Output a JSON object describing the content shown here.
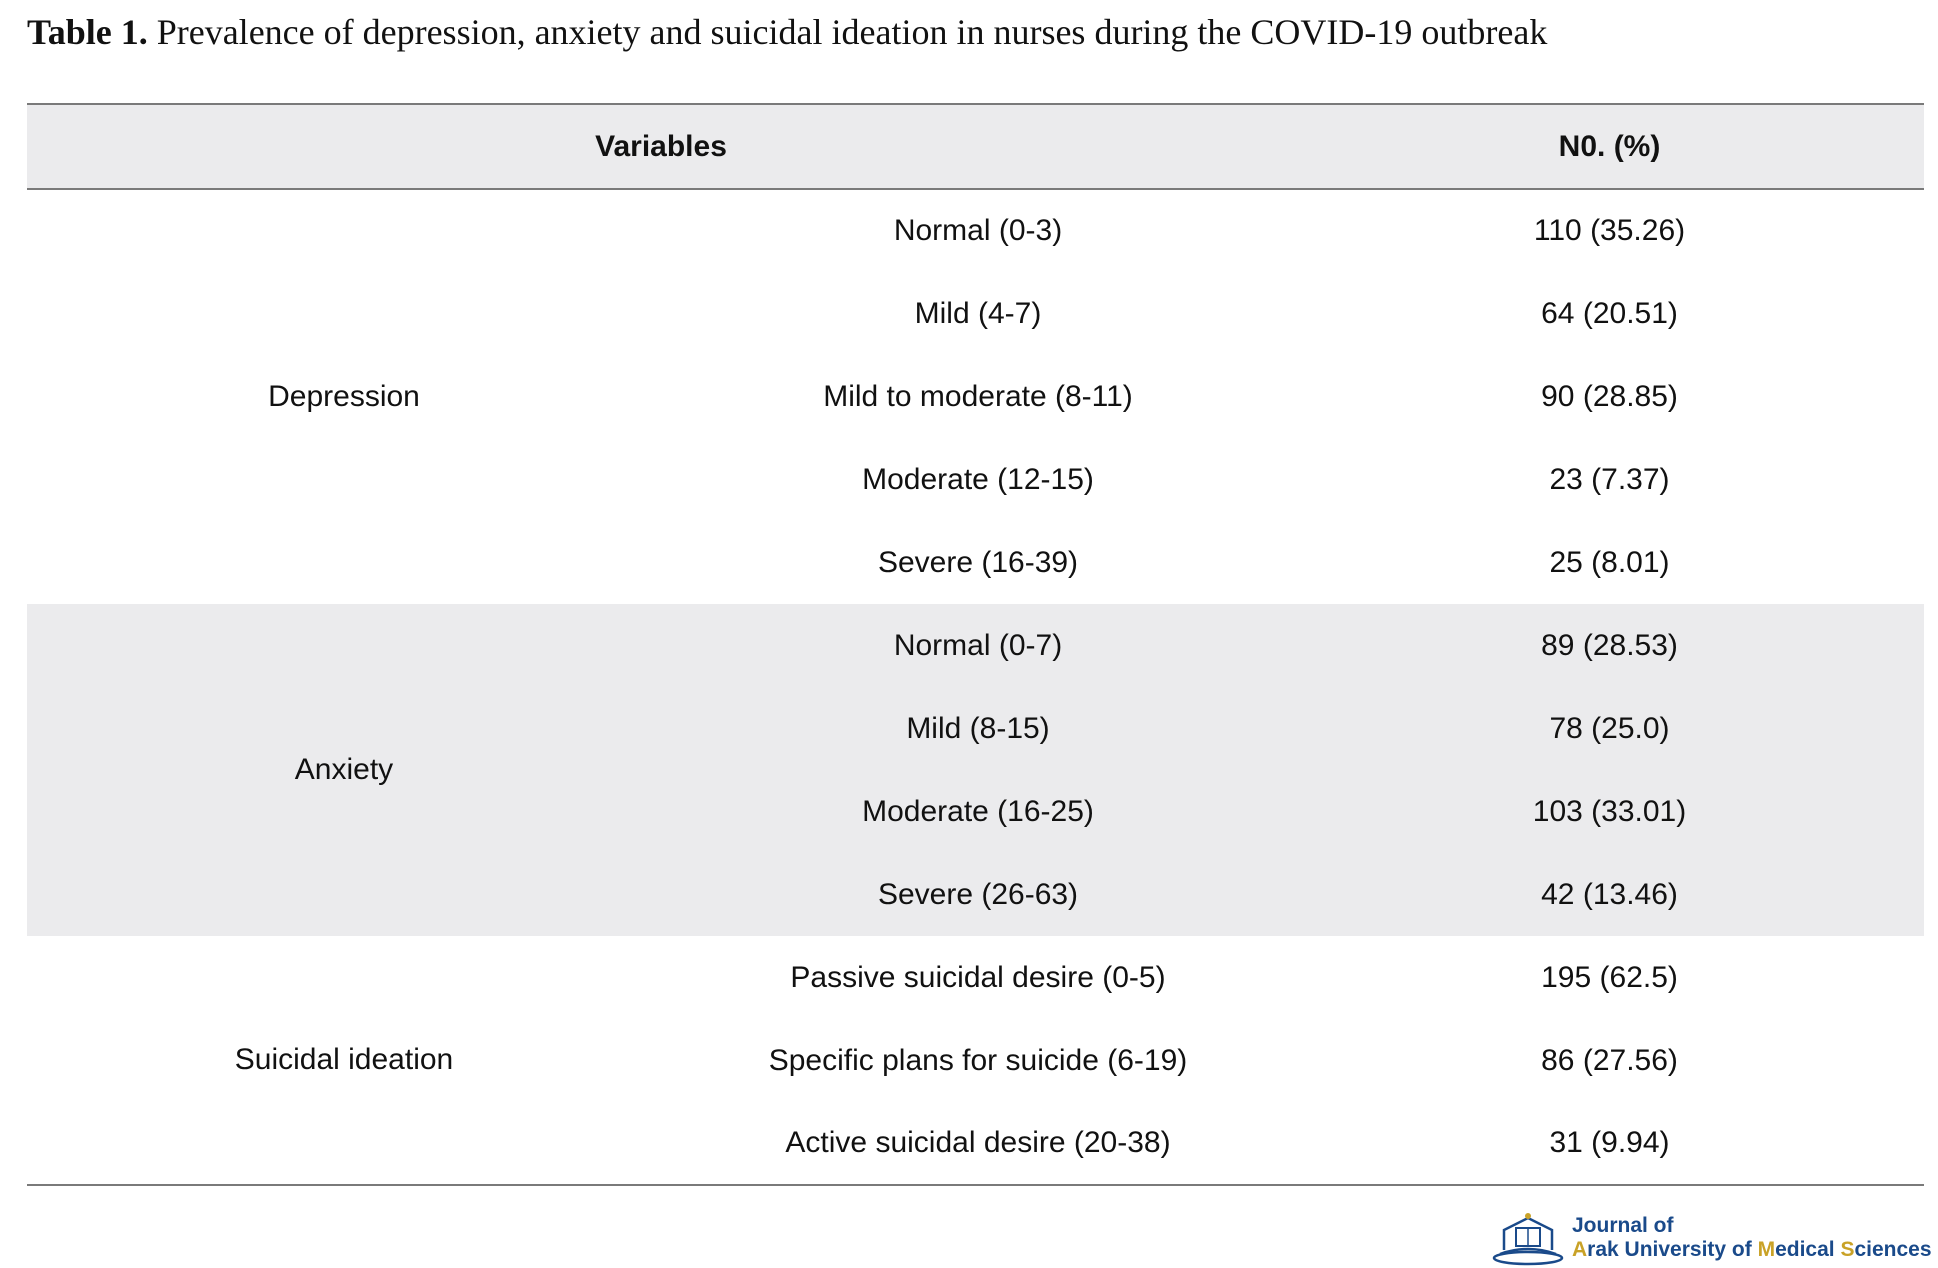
{
  "caption": {
    "label": "Table 1.",
    "text": " Prevalence of depression, anxiety and suicidal ideation in nurses during the COVID-19 outbreak"
  },
  "table": {
    "headers": [
      "Variables",
      "N0. (%)"
    ],
    "groups": [
      {
        "name": "Depression",
        "rows": [
          {
            "level": "Normal (0-3)",
            "value": "110 (35.26)"
          },
          {
            "level": "Mild (4-7)",
            "value": "64 (20.51)"
          },
          {
            "level": "Mild to moderate (8-11)",
            "value": "90 (28.85)"
          },
          {
            "level": "Moderate (12-15)",
            "value": "23 (7.37)"
          },
          {
            "level": "Severe (16-39)",
            "value": "25 (8.01)"
          }
        ]
      },
      {
        "name": "Anxiety",
        "rows": [
          {
            "level": "Normal (0-7)",
            "value": "89 (28.53)"
          },
          {
            "level": "Mild (8-15)",
            "value": "78 (25.0)"
          },
          {
            "level": "Moderate (16-25)",
            "value": "103 (33.01)"
          },
          {
            "level": "Severe (26-63)",
            "value": "42 (13.46)"
          }
        ]
      },
      {
        "name": "Suicidal ideation",
        "rows": [
          {
            "level": "Passive suicidal desire (0-5)",
            "value": "195 (62.5)"
          },
          {
            "level": "Specific plans for suicide (6-19)",
            "value": "86 (27.56)"
          },
          {
            "level": "Active suicidal desire (20-38)",
            "value": "31 (9.94)"
          }
        ]
      }
    ]
  },
  "logo": {
    "line1": "Journal of",
    "line2_parts": [
      "A",
      "rak University of ",
      "M",
      "edical ",
      "S",
      "ciences"
    ],
    "colors": {
      "primary": "#1a4a8a",
      "accent": "#c9a227"
    }
  }
}
